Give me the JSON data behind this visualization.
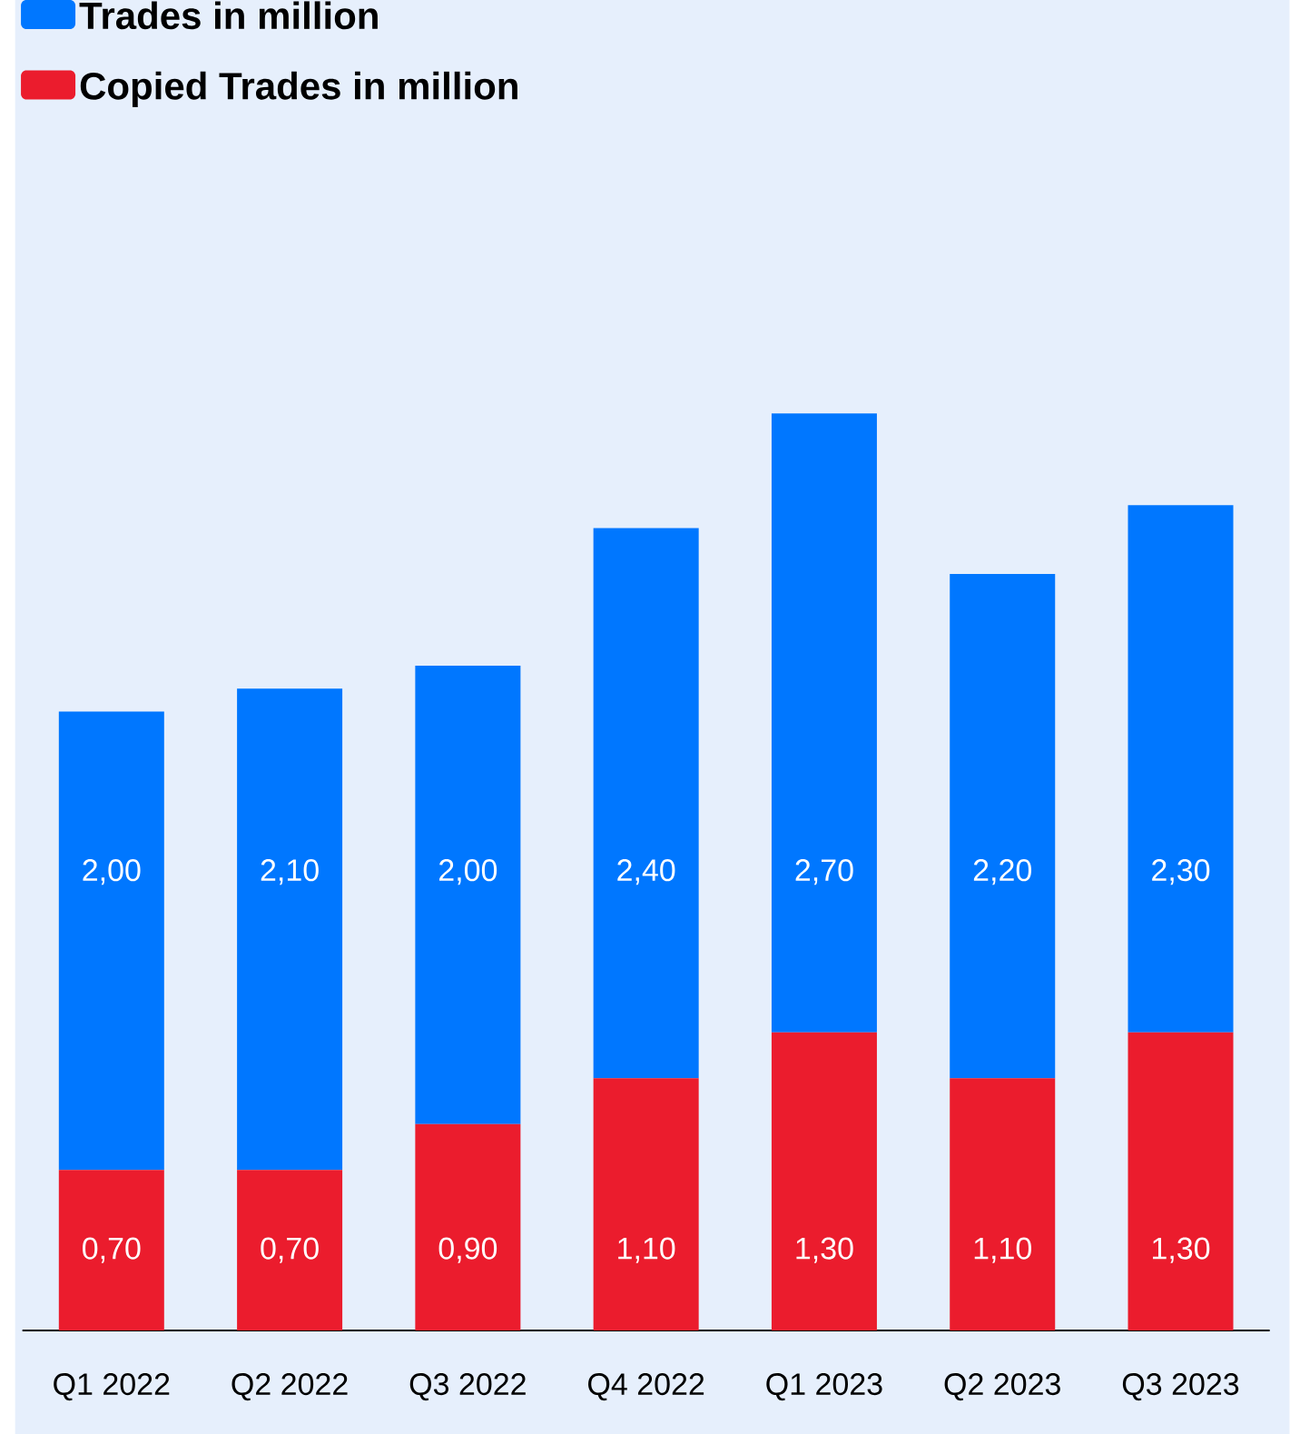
{
  "chart_data": {
    "type": "bar",
    "stacked": true,
    "legend": "top left",
    "categories": [
      "Q1 2022",
      "Q2 2022",
      "Q3 2022",
      "Q4 2022",
      "Q1 2023",
      "Q2 2023",
      "Q3 2023"
    ],
    "series": [
      {
        "name": "Copied Trades in million",
        "color": "#eb1c2d",
        "values": [
          0.7,
          0.7,
          0.9,
          1.1,
          1.3,
          1.1,
          1.3
        ],
        "value_labels": [
          "0,70",
          "0,70",
          "0,90",
          "1,10",
          "1,30",
          "1,10",
          "1,30"
        ]
      },
      {
        "name": "Trades in million",
        "color": "#0077ff",
        "values": [
          2.0,
          2.1,
          2.0,
          2.4,
          2.7,
          2.2,
          2.3
        ],
        "value_labels": [
          "2,00",
          "2,10",
          "2,00",
          "2,40",
          "2,70",
          "2,20",
          "2,30"
        ]
      }
    ]
  }
}
